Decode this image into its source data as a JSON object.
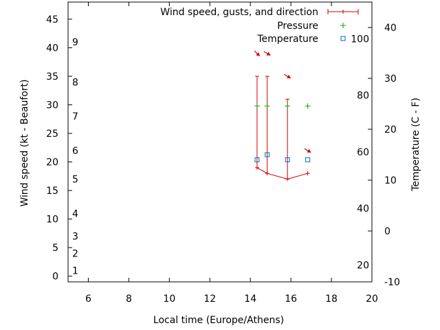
{
  "chart_data": {
    "type": "line",
    "xlabel": "Local time (Europe/Athens)",
    "ylabel": "Wind speed (kt - Beaufort)",
    "y2label": "Temperature (C - F)",
    "xlim": [
      5,
      20
    ],
    "ylim": [
      -1,
      48
    ],
    "y2lim": [
      -10,
      45
    ],
    "x_ticks": [
      "6",
      "8",
      "10",
      "12",
      "14",
      "16",
      "18",
      "20"
    ],
    "x_tick_values": [
      6,
      8,
      10,
      12,
      14,
      16,
      18,
      20
    ],
    "y_ticks": [
      "0",
      "5",
      "10",
      "15",
      "20",
      "25",
      "30",
      "35",
      "40",
      "45"
    ],
    "y_tick_values": [
      0,
      5,
      10,
      15,
      20,
      25,
      30,
      35,
      40,
      45
    ],
    "beaufort_labels": [
      "1",
      "2",
      "3",
      "4",
      "5",
      "6",
      "7",
      "8",
      "9"
    ],
    "beaufort_values": [
      1,
      4,
      7,
      11,
      17,
      22,
      28,
      34,
      41
    ],
    "y2_ticks": [
      "-10",
      "0",
      "10",
      "20",
      "30",
      "40"
    ],
    "y2_tick_values": [
      -10,
      0,
      10,
      20,
      30,
      40
    ],
    "fahrenheit_labels": [
      "20",
      "40",
      "60",
      "80",
      "100"
    ],
    "fahrenheit_values": [
      20,
      40,
      60,
      80,
      100
    ],
    "legend": {
      "placement": "top-right",
      "entries": [
        "Wind speed, gusts, and direction",
        "Pressure",
        "Temperature"
      ]
    },
    "series": [
      {
        "name": "Wind speed, gusts, and direction",
        "color": "#cc0000",
        "x": [
          14.33,
          14.83,
          15.83,
          16.83
        ],
        "speed": [
          19,
          18,
          17,
          18
        ],
        "gust": [
          35,
          35,
          31,
          null
        ],
        "direction_deg": [
          315,
          300,
          300,
          300
        ]
      },
      {
        "name": "Pressure",
        "color": "#00aa00",
        "x": [
          14.33,
          14.83,
          15.83,
          16.83
        ],
        "y": [
          29.8,
          29.8,
          29.8,
          29.8
        ]
      },
      {
        "name": "Temperature",
        "color": "#0066cc",
        "x": [
          14.33,
          14.83,
          15.83,
          16.83
        ],
        "y": [
          14,
          15,
          14,
          14
        ]
      }
    ]
  }
}
